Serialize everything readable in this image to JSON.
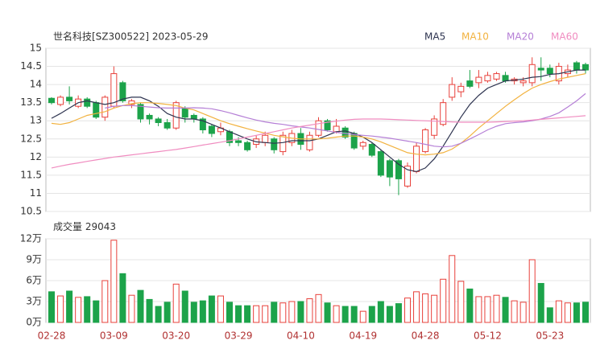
{
  "chart_data": {
    "type": "candlestick",
    "title": "世名科技[SZ300522] 2023-05-29",
    "categories": [
      "02-28",
      null,
      null,
      null,
      null,
      null,
      null,
      "03-09",
      null,
      null,
      null,
      null,
      null,
      null,
      "03-20",
      null,
      null,
      null,
      null,
      null,
      null,
      "03-29",
      null,
      null,
      null,
      null,
      null,
      null,
      "04-10",
      null,
      null,
      null,
      null,
      null,
      null,
      "04-19",
      null,
      null,
      null,
      null,
      null,
      null,
      "04-28",
      null,
      null,
      null,
      null,
      null,
      null,
      "05-12",
      null,
      null,
      null,
      null,
      null,
      null,
      "05-23",
      null,
      null,
      null,
      null
    ],
    "open": [
      13.62,
      13.45,
      13.65,
      13.4,
      13.6,
      13.5,
      13.1,
      13.4,
      14.05,
      13.45,
      13.45,
      13.15,
      13.05,
      12.95,
      12.8,
      13.35,
      13.15,
      13.05,
      12.85,
      12.7,
      12.7,
      12.45,
      12.4,
      12.35,
      12.4,
      12.5,
      12.15,
      12.4,
      12.65,
      12.2,
      12.6,
      13.0,
      12.7,
      12.8,
      12.65,
      12.3,
      12.35,
      12.15,
      11.9,
      11.9,
      11.2,
      11.6,
      12.15,
      12.6,
      12.9,
      13.65,
      13.8,
      14.1,
      14.05,
      14.1,
      14.15,
      14.25,
      14.1,
      14.05,
      14.05,
      14.45,
      14.45,
      14.1,
      14.3,
      14.6,
      14.55
    ],
    "high": [
      13.65,
      13.7,
      13.95,
      13.7,
      13.65,
      13.55,
      13.7,
      14.5,
      14.1,
      13.6,
      13.5,
      13.2,
      13.1,
      13.05,
      13.55,
      13.4,
      13.2,
      13.1,
      12.9,
      12.95,
      12.75,
      12.55,
      12.45,
      12.6,
      12.7,
      12.55,
      12.7,
      12.75,
      12.8,
      12.7,
      13.1,
      13.05,
      13.05,
      12.85,
      12.7,
      12.45,
      12.4,
      12.2,
      11.95,
      11.95,
      11.85,
      12.4,
      12.8,
      13.15,
      13.6,
      14.2,
      14.05,
      14.4,
      14.4,
      14.35,
      14.35,
      14.35,
      14.2,
      14.2,
      14.75,
      14.75,
      14.55,
      14.6,
      14.55,
      14.65,
      14.6
    ],
    "low": [
      13.45,
      13.4,
      13.45,
      13.35,
      13.35,
      13.05,
      13.0,
      13.35,
      13.5,
      13.35,
      12.95,
      12.9,
      12.85,
      12.75,
      12.75,
      12.95,
      12.95,
      12.65,
      12.55,
      12.6,
      12.3,
      12.3,
      12.15,
      12.25,
      12.3,
      12.1,
      12.05,
      12.3,
      12.2,
      12.15,
      12.55,
      12.7,
      12.65,
      12.5,
      12.2,
      12.2,
      12.0,
      11.45,
      11.2,
      10.95,
      11.15,
      11.55,
      12.1,
      12.5,
      12.85,
      13.55,
      13.65,
      13.9,
      13.9,
      14.05,
      14.1,
      14.05,
      14.0,
      13.95,
      13.95,
      14.1,
      14.2,
      14.0,
      14.2,
      14.3,
      14.3
    ],
    "close": [
      13.5,
      13.65,
      13.55,
      13.6,
      13.4,
      13.1,
      13.65,
      14.3,
      13.55,
      13.55,
      13.05,
      13.05,
      12.95,
      12.8,
      13.5,
      13.1,
      13.05,
      12.75,
      12.65,
      12.8,
      12.4,
      12.4,
      12.2,
      12.5,
      12.6,
      12.2,
      12.6,
      12.65,
      12.35,
      12.6,
      13.0,
      12.75,
      12.85,
      12.55,
      12.25,
      12.4,
      12.05,
      11.5,
      11.45,
      11.4,
      11.75,
      12.3,
      12.75,
      13.05,
      13.5,
      14.0,
      13.95,
      13.95,
      14.2,
      14.25,
      14.3,
      14.1,
      14.15,
      14.1,
      14.55,
      14.4,
      14.3,
      14.5,
      14.4,
      14.4,
      14.4
    ],
    "up_color": "#e8413b",
    "down_color": "#1ca34a",
    "series": [
      {
        "name": "MA5",
        "color": "#2e3450",
        "values": [
          13.07,
          13.2,
          13.35,
          13.5,
          13.55,
          13.5,
          13.45,
          13.5,
          13.6,
          13.65,
          13.65,
          13.55,
          13.4,
          13.2,
          13.1,
          13.05,
          13.05,
          13.0,
          12.9,
          12.8,
          12.7,
          12.6,
          12.5,
          12.42,
          12.4,
          12.38,
          12.4,
          12.45,
          12.45,
          12.45,
          12.5,
          12.6,
          12.7,
          12.72,
          12.65,
          12.55,
          12.4,
          12.2,
          12.0,
          11.8,
          11.65,
          11.6,
          11.7,
          11.95,
          12.3,
          12.7,
          13.1,
          13.45,
          13.7,
          13.9,
          14.0,
          14.1,
          14.12,
          14.15,
          14.2,
          14.22,
          14.28,
          14.3,
          14.35,
          14.4,
          14.4
        ]
      },
      {
        "name": "MA10",
        "color": "#f2b23f",
        "values": [
          12.93,
          12.9,
          12.95,
          13.05,
          13.15,
          13.2,
          13.25,
          13.35,
          13.42,
          13.47,
          13.5,
          13.5,
          13.48,
          13.45,
          13.42,
          13.35,
          13.3,
          13.2,
          13.1,
          13.0,
          12.92,
          12.85,
          12.78,
          12.72,
          12.66,
          12.6,
          12.56,
          12.52,
          12.5,
          12.5,
          12.5,
          12.52,
          12.55,
          12.58,
          12.58,
          12.55,
          12.5,
          12.42,
          12.32,
          12.22,
          12.12,
          12.08,
          12.06,
          12.08,
          12.12,
          12.22,
          12.38,
          12.58,
          12.8,
          13.0,
          13.2,
          13.4,
          13.58,
          13.75,
          13.9,
          14.0,
          14.08,
          14.15,
          14.2,
          14.25,
          14.3
        ]
      },
      {
        "name": "MA20",
        "color": "#b57fd6",
        "values": [
          null,
          null,
          null,
          null,
          null,
          null,
          13.35,
          13.4,
          13.42,
          13.42,
          13.4,
          13.38,
          13.36,
          13.35,
          13.35,
          13.35,
          13.36,
          13.35,
          13.33,
          13.28,
          13.22,
          13.15,
          13.08,
          13.02,
          12.97,
          12.93,
          12.9,
          12.86,
          12.83,
          12.8,
          12.76,
          12.72,
          12.68,
          12.65,
          12.62,
          12.6,
          12.58,
          12.55,
          12.52,
          12.48,
          12.44,
          12.4,
          12.35,
          12.3,
          12.28,
          12.3,
          12.38,
          12.5,
          12.62,
          12.75,
          12.85,
          12.92,
          12.95,
          12.97,
          13.0,
          13.05,
          13.12,
          13.22,
          13.38,
          13.55,
          13.75
        ]
      },
      {
        "name": "MA60",
        "color": "#f08cc0",
        "values": [
          11.7,
          11.75,
          11.8,
          11.84,
          11.88,
          11.92,
          11.96,
          12.0,
          12.03,
          12.06,
          12.09,
          12.12,
          12.15,
          12.18,
          12.21,
          12.25,
          12.29,
          12.33,
          12.37,
          12.41,
          12.45,
          12.5,
          12.55,
          12.6,
          12.65,
          12.7,
          12.75,
          12.8,
          12.84,
          12.88,
          12.92,
          12.96,
          12.99,
          13.02,
          13.04,
          13.05,
          13.05,
          13.05,
          13.04,
          13.03,
          13.02,
          13.01,
          13.0,
          12.99,
          12.98,
          12.97,
          12.96,
          12.96,
          12.96,
          12.96,
          12.97,
          12.98,
          12.99,
          13.0,
          13.02,
          13.04,
          13.06,
          13.08,
          13.1,
          13.12,
          13.14
        ]
      }
    ],
    "ylim": [
      10.5,
      15
    ],
    "yticks": [
      10.5,
      11,
      11.5,
      12,
      12.5,
      13,
      13.5,
      14,
      14.5,
      15
    ],
    "grid": true,
    "volume": {
      "title": "成交量",
      "values": [
        44000,
        38000,
        45000,
        36000,
        37000,
        31000,
        60000,
        118000,
        70000,
        39000,
        46000,
        33000,
        23000,
        29000,
        55000,
        45000,
        29000,
        31000,
        38000,
        38000,
        29000,
        24000,
        24000,
        24000,
        24000,
        29000,
        28000,
        30000,
        30000,
        34000,
        40000,
        28000,
        24000,
        23000,
        23000,
        16000,
        23000,
        30000,
        23000,
        27000,
        35000,
        44000,
        41000,
        39000,
        62000,
        96000,
        59000,
        48000,
        37000,
        37000,
        39000,
        36000,
        31000,
        29000,
        90000,
        56000,
        21000,
        31000,
        28000,
        28000,
        29043
      ],
      "ylim": [
        0,
        120000
      ],
      "yticks": [
        {
          "value": 0,
          "label": "0万"
        },
        {
          "value": 30000,
          "label": "3万"
        },
        {
          "value": 60000,
          "label": "6万"
        },
        {
          "value": 90000,
          "label": "9万"
        },
        {
          "value": 120000,
          "label": "12万"
        }
      ]
    }
  }
}
